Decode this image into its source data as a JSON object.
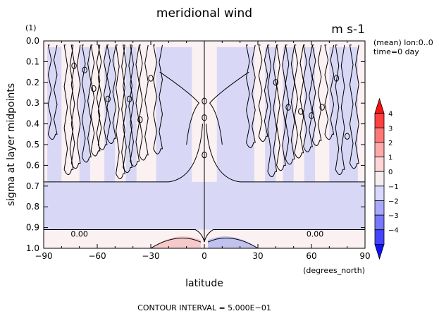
{
  "chart_data": {
    "type": "heatmap",
    "title": "meridional wind",
    "units": "m s-1",
    "panel_index": "(1)",
    "info": [
      "(mean) lon:0..0",
      "time=0 day"
    ],
    "xlabel": "latitude",
    "x_unit": "(degrees_north)",
    "ylabel": "sigma at layer midpoints",
    "xlim": [
      -90,
      90
    ],
    "ylim": [
      0.0,
      1.0
    ],
    "y_inverted": true,
    "x_ticks": [
      -90,
      -60,
      -30,
      0,
      30,
      60,
      90
    ],
    "x_tick_labels": [
      "−90",
      "−60",
      "−30",
      "0",
      "30",
      "60",
      "90"
    ],
    "y_ticks": [
      0.0,
      0.1,
      0.2,
      0.3,
      0.4,
      0.5,
      0.6,
      0.7,
      0.8,
      0.9,
      1.0
    ],
    "y_tick_labels": [
      "0.0",
      "0.1",
      "0.2",
      "0.3",
      "0.4",
      "0.5",
      "0.6",
      "0.7",
      "0.8",
      "0.9",
      "1.0"
    ],
    "colorbar": {
      "levels": [
        4,
        3,
        2,
        1,
        0,
        -1,
        -2,
        -3,
        -4
      ],
      "labels": [
        "4",
        "3",
        "2",
        "1",
        "0",
        "−1",
        "−2",
        "−3",
        "−4"
      ],
      "colors": [
        "#ff1010",
        "#ff4040",
        "#ff7777",
        "#ffaaaa",
        "#ffd6d6",
        "#f5eef0",
        "#d9d9ff",
        "#a8a8ff",
        "#7777ff",
        "#4545ff",
        "#1010ff"
      ]
    },
    "contour_labels": [
      {
        "x": -70,
        "y": 0.93,
        "text": "0.00"
      },
      {
        "x": 62,
        "y": 0.93,
        "text": "0.00"
      }
    ],
    "regions": [
      {
        "name": "upper-band",
        "y_range": [
          0.0,
          0.68
        ],
        "sign": "alternating",
        "value_range": [
          -0.5,
          0.5
        ]
      },
      {
        "name": "mid-band",
        "y_range": [
          0.68,
          0.91
        ],
        "sign": "negative",
        "value_range": [
          -0.5,
          0.0
        ]
      },
      {
        "name": "near-surface-south",
        "y_range": [
          0.91,
          1.0
        ],
        "x_range": [
          -30,
          0
        ],
        "sign": "positive",
        "value_range": [
          0.0,
          0.5
        ]
      },
      {
        "name": "near-surface-north",
        "y_range": [
          0.91,
          1.0
        ],
        "x_range": [
          0,
          30
        ],
        "sign": "negative",
        "value_range": [
          -0.5,
          0.0
        ]
      }
    ],
    "footer": "CONTOUR INTERVAL = 5.000E−01",
    "colors": {
      "positive_light": "#fbf0f2",
      "negative_light": "#d8d8f6",
      "positive_mid": "#f6caca",
      "negative_mid": "#c2c2ee"
    }
  }
}
